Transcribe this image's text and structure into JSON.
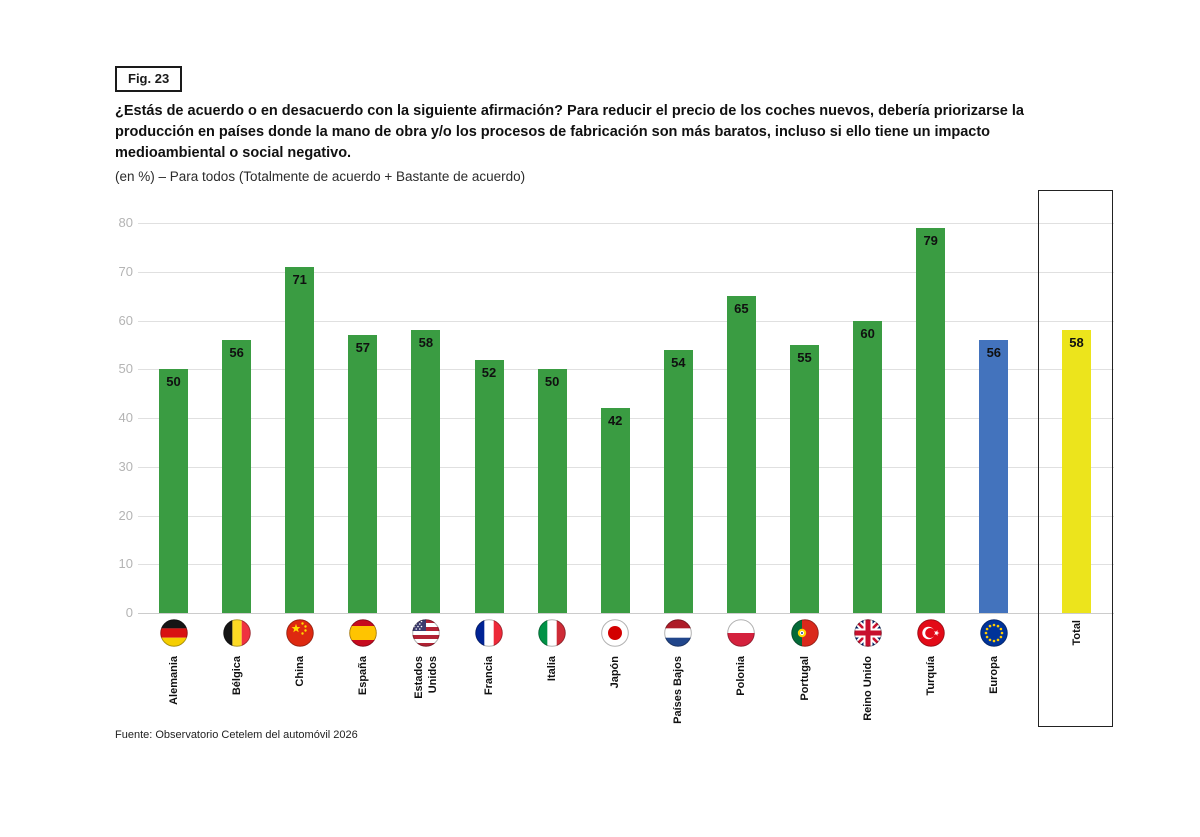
{
  "figure_label": "Fig. 23",
  "source": "Fuente: Observatorio Cetelem del automóvil 2026",
  "chart_data": {
    "type": "bar",
    "title": "¿Estás de acuerdo o en desacuerdo con la siguiente afirmación? Para reducir el precio de los coches nuevos, debería priorizarse la producción en países donde la mano de obra y/o los procesos de fabricación son más baratos, incluso si ello tiene un impacto medioambiental o social negativo.",
    "subtitle": "(en %) – Para todos (Totalmente de acuerdo + Bastante de acuerdo)",
    "categories": [
      "Alemania",
      "Bélgica",
      "China",
      "España",
      "Estados Unidos",
      "Francia",
      "Italia",
      "Japón",
      "Países Bajos",
      "Polonia",
      "Portugal",
      "Reino Unido",
      "Turquía",
      "Europa",
      "Total"
    ],
    "values": [
      50,
      56,
      71,
      57,
      58,
      52,
      50,
      42,
      54,
      65,
      55,
      60,
      79,
      56,
      58
    ],
    "flags": [
      "germany",
      "belgium",
      "china",
      "spain",
      "usa",
      "france",
      "italy",
      "japan",
      "netherlands",
      "poland",
      "portugal",
      "united-kingdom",
      "turkey",
      "european-union",
      null
    ],
    "bar_colors": [
      "#3a9c42",
      "#3a9c42",
      "#3a9c42",
      "#3a9c42",
      "#3a9c42",
      "#3a9c42",
      "#3a9c42",
      "#3a9c42",
      "#3a9c42",
      "#3a9c42",
      "#3a9c42",
      "#3a9c42",
      "#3a9c42",
      "#4373bd",
      "#ece41c"
    ],
    "colors": {
      "country_bar": "#3a9c42",
      "europe_bar": "#4373bd",
      "total_bar": "#ece41c",
      "value_label": "#101010",
      "tick_label": "#b4b4b4",
      "gridline": "#e0e0e0"
    },
    "ylim": [
      0,
      80
    ],
    "yticks": [
      0,
      10,
      20,
      30,
      40,
      50,
      60,
      70,
      80
    ],
    "grid": true,
    "legend": null,
    "total_boxed": true
  }
}
